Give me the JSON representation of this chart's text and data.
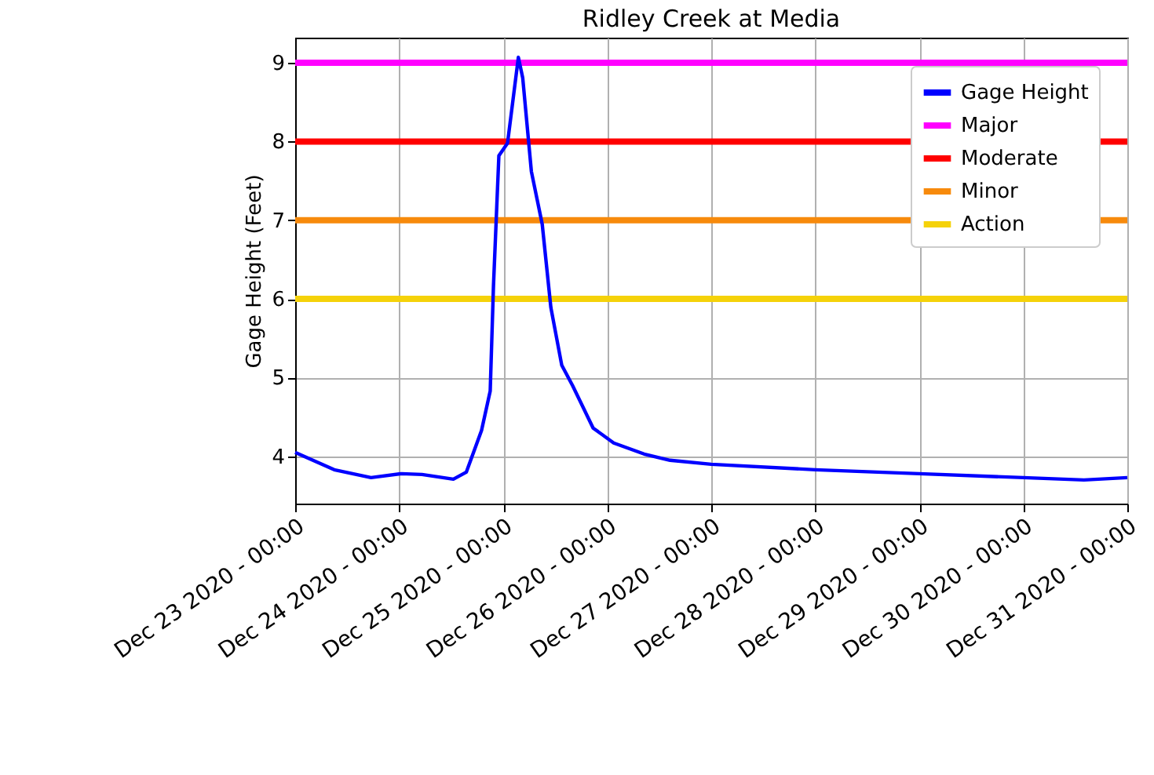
{
  "chart_data": {
    "type": "line",
    "title": "Ridley Creek at Media",
    "ylabel": "Gage Height (Feet)",
    "x": [
      "2020-12-23T00:00",
      "2020-12-23T09:00",
      "2020-12-23T17:30",
      "2020-12-24T00:30",
      "2020-12-24T05:15",
      "2020-12-24T12:30",
      "2020-12-24T15:30",
      "2020-12-24T19:00",
      "2020-12-24T21:00",
      "2020-12-24T21:45",
      "2020-12-24T23:00",
      "2020-12-25T01:00",
      "2020-12-25T03:30",
      "2020-12-25T04:30",
      "2020-12-25T06:30",
      "2020-12-25T09:00",
      "2020-12-25T11:00",
      "2020-12-25T13:30",
      "2020-12-25T16:00",
      "2020-12-25T20:45",
      "2020-12-26T01:30",
      "2020-12-26T08:30",
      "2020-12-26T14:30",
      "2020-12-27T00:00",
      "2020-12-28T00:00",
      "2020-12-29T00:00",
      "2020-12-30T00:00",
      "2020-12-30T14:00",
      "2020-12-31T00:00"
    ],
    "series": [
      {
        "name": "Gage Height",
        "color": "#0000ff",
        "values": [
          4.05,
          3.83,
          3.73,
          3.78,
          3.77,
          3.71,
          3.8,
          4.33,
          4.83,
          6.16,
          7.82,
          7.98,
          9.07,
          8.81,
          7.62,
          6.95,
          5.89,
          5.16,
          4.9,
          4.36,
          4.17,
          4.03,
          3.95,
          3.9,
          3.83,
          3.78,
          3.73,
          3.7,
          3.73
        ]
      }
    ],
    "ref_lines": [
      {
        "axis": "y",
        "value": 9,
        "label": "Major",
        "color": "#ff00ff"
      },
      {
        "axis": "y",
        "value": 8,
        "label": "Moderate",
        "color": "#ff0000"
      },
      {
        "axis": "y",
        "value": 7,
        "label": "Minor",
        "color": "#f78a0c"
      },
      {
        "axis": "y",
        "value": 6,
        "label": "Action",
        "color": "#f5d20a"
      }
    ],
    "xlim": [
      "2020-12-23T00:00",
      "2020-12-31T00:00"
    ],
    "xticks": [
      {
        "value": "2020-12-23T00:00",
        "label": "Dec 23 2020 - 00:00"
      },
      {
        "value": "2020-12-24T00:00",
        "label": "Dec 24 2020 - 00:00"
      },
      {
        "value": "2020-12-25T00:00",
        "label": "Dec 25 2020 - 00:00"
      },
      {
        "value": "2020-12-26T00:00",
        "label": "Dec 26 2020 - 00:00"
      },
      {
        "value": "2020-12-27T00:00",
        "label": "Dec 27 2020 - 00:00"
      },
      {
        "value": "2020-12-28T00:00",
        "label": "Dec 28 2020 - 00:00"
      },
      {
        "value": "2020-12-29T00:00",
        "label": "Dec 29 2020 - 00:00"
      },
      {
        "value": "2020-12-30T00:00",
        "label": "Dec 30 2020 - 00:00"
      },
      {
        "value": "2020-12-31T00:00",
        "label": "Dec 31 2020 - 00:00"
      }
    ],
    "ylim": [
      3.4,
      9.32
    ],
    "yticks": [
      4,
      5,
      6,
      7,
      8,
      9
    ],
    "grid": true,
    "legend": "top right",
    "marker": "none",
    "line_style": "solid"
  }
}
